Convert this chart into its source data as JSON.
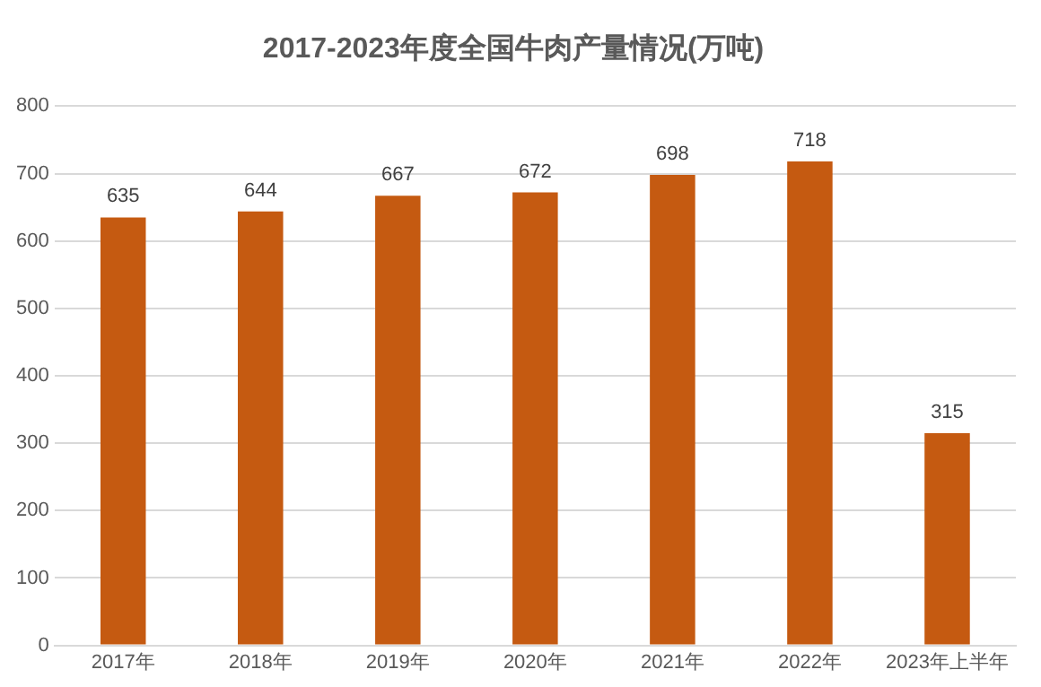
{
  "chart_data": {
    "type": "bar",
    "title": "2017-2023年度全国牛肉产量情况(万吨)",
    "categories": [
      "2017年",
      "2018年",
      "2019年",
      "2020年",
      "2021年",
      "2022年",
      "2023年上半年"
    ],
    "values": [
      635,
      644,
      667,
      672,
      698,
      718,
      315
    ],
    "color": "#c55a11",
    "ylim": [
      0,
      800
    ],
    "yticks": [
      0,
      100,
      200,
      300,
      400,
      500,
      600,
      700,
      800
    ],
    "grid": "y",
    "data_labels": true,
    "legend": false
  }
}
